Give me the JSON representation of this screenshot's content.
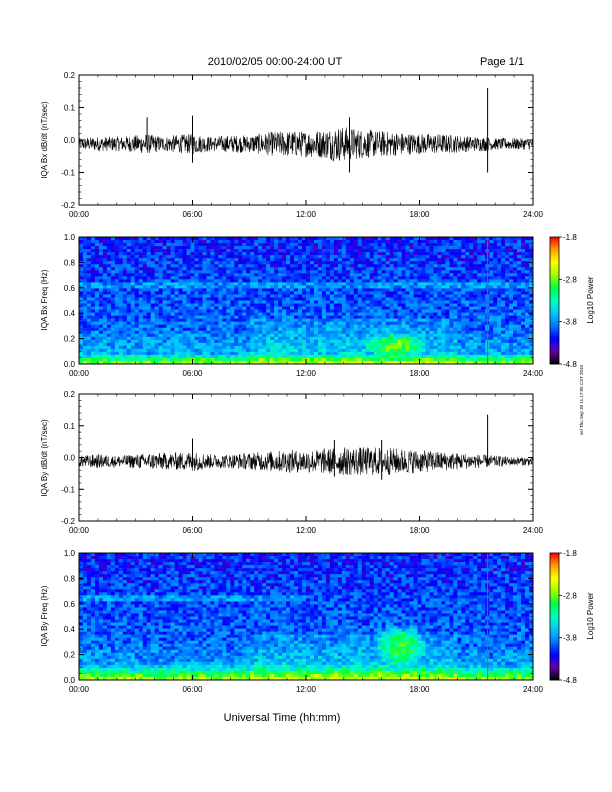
{
  "header": {
    "title": "2010/02/05  00:00-24:00 UT",
    "page": "Page 1/1"
  },
  "footer": {
    "xlabel": "Universal Time (hh:mm)",
    "side_note": "sel Thu Sep 30 11:17:05 CST 2010"
  },
  "colors": {
    "colormap": [
      "#000000",
      "#6a00a8",
      "#0000ff",
      "#0078ff",
      "#00c8ff",
      "#00ffc0",
      "#00ff40",
      "#a0ff00",
      "#ffff00",
      "#ffa000",
      "#ff0000"
    ]
  },
  "chart_data": [
    {
      "type": "line",
      "ylabel": "IQA Bx dB/dt (nT/sec)",
      "ylim": [
        -0.2,
        0.2
      ],
      "yticks": [
        "0.2",
        "0.1",
        "0.0",
        "-0.1",
        "-0.2"
      ],
      "xlim_hours": [
        0,
        24
      ],
      "xticks": [
        "00:00",
        "06:00",
        "12:00",
        "18:00",
        "24:00"
      ],
      "envelope": {
        "hours": [
          0,
          1,
          2,
          3,
          3.5,
          4,
          4.5,
          5,
          6,
          6.5,
          7,
          8,
          9,
          10,
          11,
          12,
          13,
          13.5,
          14,
          14.5,
          15,
          16,
          17,
          18,
          19,
          20,
          21,
          21.5,
          22,
          23,
          24
        ],
        "amplitude": [
          0.02,
          0.025,
          0.025,
          0.03,
          0.035,
          0.03,
          0.025,
          0.03,
          0.035,
          0.03,
          0.025,
          0.03,
          0.03,
          0.04,
          0.045,
          0.045,
          0.05,
          0.06,
          0.06,
          0.055,
          0.05,
          0.045,
          0.04,
          0.035,
          0.035,
          0.03,
          0.025,
          0.025,
          0.02,
          0.02,
          0.02
        ]
      },
      "spikes": [
        {
          "hour": 3.6,
          "max": 0.07,
          "min": -0.03
        },
        {
          "hour": 6.0,
          "max": 0.075,
          "min": -0.07
        },
        {
          "hour": 14.3,
          "max": 0.07,
          "min": -0.1
        },
        {
          "hour": 21.6,
          "max": 0.16,
          "min": -0.1
        }
      ]
    },
    {
      "type": "heatmap",
      "ylabel": "IQA Bx Freq (Hz)",
      "ylim": [
        0,
        1.0
      ],
      "yticks": [
        "1.0",
        "0.8",
        "0.6",
        "0.4",
        "0.2",
        "0.0"
      ],
      "xlim_hours": [
        0,
        24
      ],
      "xticks": [
        "00:00",
        "06:00",
        "12:00",
        "18:00",
        "24:00"
      ],
      "colorbar": {
        "label": "Log10 Power",
        "range": [
          -4.8,
          -1.8
        ],
        "ticks": [
          "-1.8",
          "-2.8",
          "-3.8",
          "-4.8"
        ]
      },
      "features": [
        {
          "kind": "low-freq band",
          "freq_max": 0.08,
          "hours": [
            0,
            24
          ]
        },
        {
          "kind": "tone line",
          "freq": 0.62,
          "hours": [
            0,
            24
          ]
        },
        {
          "kind": "enhancement",
          "freq": [
            0.05,
            0.25
          ],
          "hours": [
            15.0,
            18.5
          ]
        },
        {
          "kind": "vertical line",
          "hour": 21.6
        }
      ]
    },
    {
      "type": "line",
      "ylabel": "IQA By dB/dt (nT/sec)",
      "ylim": [
        -0.2,
        0.2
      ],
      "yticks": [
        "0.2",
        "0.1",
        "0.0",
        "-0.1",
        "-0.2"
      ],
      "xlim_hours": [
        0,
        24
      ],
      "xticks": [
        "00:00",
        "06:00",
        "12:00",
        "18:00",
        "24:00"
      ],
      "envelope": {
        "hours": [
          0,
          1,
          2,
          3,
          4,
          5,
          6,
          7,
          8,
          9,
          10,
          11,
          12,
          13,
          14,
          15,
          16,
          17,
          18,
          19,
          20,
          21,
          22,
          23,
          24
        ],
        "amplitude": [
          0.02,
          0.025,
          0.02,
          0.025,
          0.03,
          0.03,
          0.035,
          0.025,
          0.025,
          0.03,
          0.035,
          0.04,
          0.04,
          0.045,
          0.05,
          0.05,
          0.05,
          0.045,
          0.04,
          0.035,
          0.03,
          0.025,
          0.02,
          0.015,
          0.015
        ]
      },
      "spikes": [
        {
          "hour": 6.0,
          "max": 0.06,
          "min": -0.03
        },
        {
          "hour": 13.5,
          "max": 0.055,
          "min": -0.06
        },
        {
          "hour": 16.0,
          "max": 0.055,
          "min": -0.07
        },
        {
          "hour": 21.6,
          "max": 0.135,
          "min": -0.02
        }
      ]
    },
    {
      "type": "heatmap",
      "ylabel": "IQA By Freq (Hz)",
      "ylim": [
        0,
        1.0
      ],
      "yticks": [
        "1.0",
        "0.8",
        "0.6",
        "0.4",
        "0.2",
        "0.0"
      ],
      "xlim_hours": [
        0,
        24
      ],
      "xticks": [
        "00:00",
        "06:00",
        "12:00",
        "18:00",
        "24:00"
      ],
      "colorbar": {
        "label": "Log10 Power",
        "range": [
          -4.8,
          -1.8
        ],
        "ticks": [
          "-1.8",
          "-2.8",
          "-3.8",
          "-4.8"
        ]
      },
      "features": [
        {
          "kind": "low-freq band",
          "freq_max": 0.12,
          "hours": [
            0,
            24
          ]
        },
        {
          "kind": "tone line",
          "freq": 0.65,
          "hours": [
            0,
            12
          ]
        },
        {
          "kind": "enhancement",
          "freq": [
            0.1,
            0.45
          ],
          "hours": [
            15.5,
            18.5
          ]
        },
        {
          "kind": "vertical line",
          "hour": 21.6
        }
      ]
    }
  ]
}
